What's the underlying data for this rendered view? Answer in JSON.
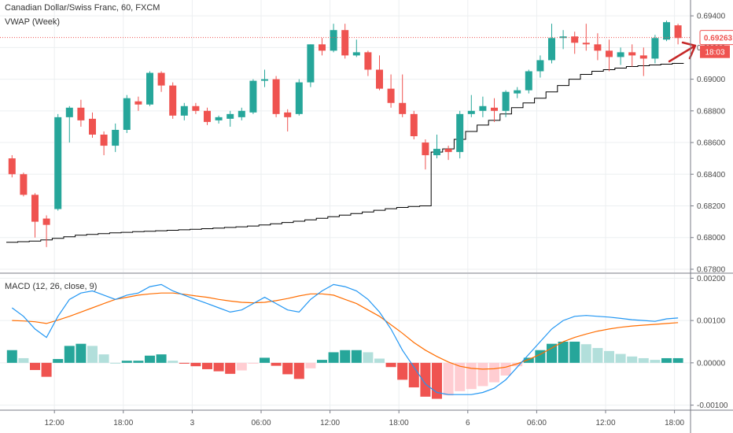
{
  "header": {
    "title": "Canadian Dollar/Swiss Franc, 60, FXCM",
    "vwap_label": "VWAP (Week)"
  },
  "macd_panel": {
    "label": "MACD (12, 26, close, 9)"
  },
  "price_marker": {
    "price": "0.69263",
    "countdown": "18:03"
  },
  "colors": {
    "up": "#26a69a",
    "down": "#ef5350",
    "hist_up_strong": "#26a69a",
    "hist_up_weak": "#b2dfdb",
    "hist_down_strong": "#ef5350",
    "hist_down_weak": "#ffcdd2",
    "macd_line": "#2196f3",
    "signal_line": "#ff6d00",
    "vwap_line": "#000000",
    "price_line": "#ef5350",
    "annotation_arrow": "#c62828"
  },
  "chart_data": [
    {
      "type": "candlestick",
      "title": "Canadian Dollar/Swiss Franc, 60, FXCM",
      "ylim": [
        0.6778,
        0.695
      ],
      "y_ticks": [
        "0.69400",
        "0.69200",
        "0.69000",
        "0.68800",
        "0.68600",
        "0.68400",
        "0.68200",
        "0.68000",
        "0.67800"
      ],
      "x_ticks": [
        "12:00",
        "18:00",
        "3",
        "06:00",
        "12:00",
        "18:00",
        "6",
        "06:00",
        "12:00",
        "18:00"
      ],
      "ohlc": [
        [
          0.685,
          0.6852,
          0.6838,
          0.684
        ],
        [
          0.684,
          0.6841,
          0.6826,
          0.6827
        ],
        [
          0.6827,
          0.6828,
          0.68,
          0.681
        ],
        [
          0.6812,
          0.6814,
          0.6794,
          0.6808
        ],
        [
          0.6818,
          0.6878,
          0.6817,
          0.6876
        ],
        [
          0.6876,
          0.6883,
          0.686,
          0.6882
        ],
        [
          0.6882,
          0.6887,
          0.687,
          0.6874
        ],
        [
          0.6875,
          0.6879,
          0.6863,
          0.6865
        ],
        [
          0.6865,
          0.6867,
          0.6852,
          0.6858
        ],
        [
          0.6858,
          0.6872,
          0.6854,
          0.6868
        ],
        [
          0.6868,
          0.689,
          0.6866,
          0.6888
        ],
        [
          0.6886,
          0.6889,
          0.688,
          0.6884
        ],
        [
          0.6884,
          0.6905,
          0.6883,
          0.6904
        ],
        [
          0.6904,
          0.6905,
          0.6892,
          0.6896
        ],
        [
          0.6896,
          0.6898,
          0.6875,
          0.6877
        ],
        [
          0.6877,
          0.6885,
          0.6874,
          0.6883
        ],
        [
          0.6883,
          0.6885,
          0.6878,
          0.688
        ],
        [
          0.688,
          0.6882,
          0.6871,
          0.6873
        ],
        [
          0.6874,
          0.6877,
          0.6872,
          0.6876
        ],
        [
          0.6875,
          0.688,
          0.687,
          0.6878
        ],
        [
          0.6876,
          0.6882,
          0.6874,
          0.688
        ],
        [
          0.6879,
          0.69,
          0.6878,
          0.6899
        ],
        [
          0.6899,
          0.6906,
          0.6895,
          0.69
        ],
        [
          0.69,
          0.6902,
          0.6876,
          0.6878
        ],
        [
          0.6879,
          0.6881,
          0.6867,
          0.6876
        ],
        [
          0.6878,
          0.69,
          0.6877,
          0.6898
        ],
        [
          0.6898,
          0.6922,
          0.6895,
          0.6922
        ],
        [
          0.6922,
          0.6926,
          0.6915,
          0.6918
        ],
        [
          0.6918,
          0.6935,
          0.6917,
          0.6931
        ],
        [
          0.6931,
          0.6935,
          0.6913,
          0.6915
        ],
        [
          0.6915,
          0.6925,
          0.6914,
          0.6917
        ],
        [
          0.6917,
          0.6918,
          0.6902,
          0.6906
        ],
        [
          0.6906,
          0.6915,
          0.6893,
          0.6894
        ],
        [
          0.6894,
          0.6903,
          0.6882,
          0.6885
        ],
        [
          0.6885,
          0.6903,
          0.6876,
          0.6878
        ],
        [
          0.6878,
          0.688,
          0.6862,
          0.6864
        ],
        [
          0.686,
          0.6862,
          0.6843,
          0.6852
        ],
        [
          0.6852,
          0.6865,
          0.685,
          0.6856
        ],
        [
          0.6856,
          0.6858,
          0.6849,
          0.6854
        ],
        [
          0.6854,
          0.688,
          0.685,
          0.6878
        ],
        [
          0.6878,
          0.689,
          0.6876,
          0.688
        ],
        [
          0.688,
          0.6889,
          0.6876,
          0.6883
        ],
        [
          0.6882,
          0.6888,
          0.6873,
          0.688
        ],
        [
          0.688,
          0.6893,
          0.6876,
          0.6892
        ],
        [
          0.6891,
          0.6895,
          0.6888,
          0.6893
        ],
        [
          0.6893,
          0.6906,
          0.6891,
          0.6905
        ],
        [
          0.6905,
          0.6915,
          0.6901,
          0.6912
        ],
        [
          0.6912,
          0.6935,
          0.691,
          0.6926
        ],
        [
          0.6926,
          0.6931,
          0.6919,
          0.6927
        ],
        [
          0.6927,
          0.693,
          0.6916,
          0.6923
        ],
        [
          0.6923,
          0.6935,
          0.6918,
          0.6922
        ],
        [
          0.6922,
          0.6929,
          0.6912,
          0.6918
        ],
        [
          0.6918,
          0.6925,
          0.6905,
          0.6914
        ],
        [
          0.6914,
          0.692,
          0.6909,
          0.6917
        ],
        [
          0.6917,
          0.6922,
          0.6908,
          0.6915
        ],
        [
          0.6915,
          0.692,
          0.6902,
          0.6913
        ],
        [
          0.6913,
          0.6928,
          0.691,
          0.6926
        ],
        [
          0.6925,
          0.6937,
          0.6924,
          0.6936
        ],
        [
          0.6934,
          0.6935,
          0.6922,
          0.6926
        ]
      ],
      "vwap": [
        0.6797,
        0.67974,
        0.67978,
        0.67985,
        0.67995,
        0.68005,
        0.68015,
        0.6802,
        0.68025,
        0.6803,
        0.68033,
        0.68037,
        0.6804,
        0.68043,
        0.68046,
        0.68049,
        0.68052,
        0.68056,
        0.6806,
        0.68064,
        0.68068,
        0.68073,
        0.6808,
        0.68087,
        0.68095,
        0.68103,
        0.68112,
        0.68122,
        0.68132,
        0.68142,
        0.68152,
        0.68162,
        0.68172,
        0.68182,
        0.6819,
        0.68196,
        0.682,
        0.6854,
        0.6856,
        0.6862,
        0.6867,
        0.6871,
        0.6874,
        0.6878,
        0.6882,
        0.6885,
        0.6888,
        0.6892,
        0.6896,
        0.69,
        0.6903,
        0.6905,
        0.6906,
        0.6907,
        0.6908,
        0.69085,
        0.6909,
        0.69095,
        0.691
      ],
      "last_price": 0.69263,
      "last_price_label": "0.69263",
      "countdown": "18:03"
    },
    {
      "type": "macd",
      "title": "MACD (12, 26, close, 9)",
      "ylim": [
        -0.0011,
        0.0021
      ],
      "y_ticks": [
        "0.00200",
        "0.00100",
        "0.00000",
        "-0.00100"
      ],
      "macd": [
        0.0013,
        0.0011,
        0.0008,
        0.0006,
        0.0011,
        0.0015,
        0.00165,
        0.0017,
        0.0016,
        0.0015,
        0.0016,
        0.00165,
        0.0018,
        0.00185,
        0.0017,
        0.0016,
        0.0015,
        0.0014,
        0.0013,
        0.0012,
        0.00125,
        0.0014,
        0.00155,
        0.0014,
        0.00125,
        0.0012,
        0.0015,
        0.0017,
        0.00185,
        0.0018,
        0.0017,
        0.0015,
        0.0012,
        0.0008,
        0.0003,
        -0.0001,
        -0.0005,
        -0.0007,
        -0.00075,
        -0.00075,
        -0.00075,
        -0.0007,
        -0.0006,
        -0.0004,
        -0.0001,
        0.0002,
        0.0005,
        0.0008,
        0.001,
        0.0011,
        0.00112,
        0.0011,
        0.00108,
        0.00105,
        0.00102,
        0.001,
        0.00098,
        0.00104,
        0.00106
      ],
      "signal": [
        0.001,
        0.00099,
        0.00097,
        0.00093,
        0.00101,
        0.0011,
        0.0012,
        0.0013,
        0.0014,
        0.0015,
        0.00155,
        0.0016,
        0.00163,
        0.00165,
        0.00165,
        0.00162,
        0.00158,
        0.00155,
        0.0015,
        0.00146,
        0.00143,
        0.00142,
        0.00143,
        0.00147,
        0.00152,
        0.00158,
        0.00163,
        0.00163,
        0.0016,
        0.0015,
        0.0014,
        0.00125,
        0.0011,
        0.0009,
        0.0007,
        0.00048,
        0.0003,
        0.00015,
        2e-05,
        -8e-05,
        -0.00013,
        -0.00015,
        -0.00014,
        -0.0001,
        -2e-05,
        8e-05,
        0.0002,
        0.00035,
        0.0005,
        0.0006,
        0.00068,
        0.00075,
        0.0008,
        0.00084,
        0.00087,
        0.00089,
        0.00091,
        0.00093,
        0.00095
      ],
      "histogram": [
        0.0003,
        0.00011,
        -0.00017,
        -0.00033,
        9e-05,
        0.0004,
        0.00045,
        0.0004,
        0.0002,
        0.0,
        5e-05,
        5e-05,
        0.00017,
        0.0002,
        5e-05,
        -2e-05,
        -8e-05,
        -0.00015,
        -0.0002,
        -0.00026,
        -0.00018,
        -2e-05,
        0.00012,
        -7e-05,
        -0.00027,
        -0.00038,
        -0.00013,
        7e-05,
        0.00025,
        0.0003,
        0.0003,
        0.00025,
        0.0001,
        -0.0001,
        -0.0004,
        -0.00058,
        -0.0008,
        -0.00085,
        -0.00077,
        -0.00067,
        -0.00062,
        -0.00055,
        -0.00046,
        -0.0003,
        -8e-05,
        0.00012,
        0.0003,
        0.00045,
        0.0005,
        0.0005,
        0.00044,
        0.00035,
        0.00028,
        0.00021,
        0.00015,
        0.00011,
        7e-05,
        0.00011,
        0.00011
      ]
    }
  ]
}
